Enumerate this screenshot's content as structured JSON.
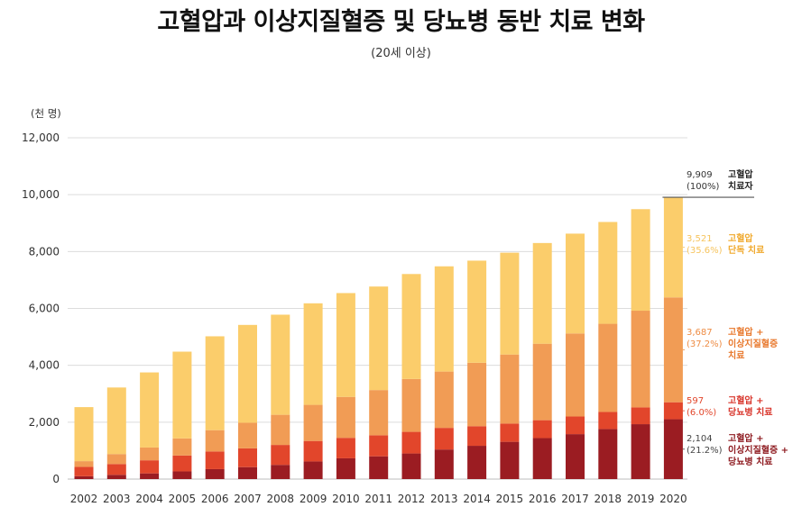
{
  "title": "고혈압과 이상지질혈증 및 당뇨병 동반 치료 변화",
  "subtitle": "(20세 이상)",
  "chart_data": {
    "type": "bar",
    "stacked": true,
    "y_unit": "(천 명)",
    "ylim": [
      0,
      12000
    ],
    "yticks": [
      "0",
      "2,000",
      "4,000",
      "6,000",
      "8,000",
      "10,000",
      "12,000"
    ],
    "grid": true,
    "categories": [
      "2002",
      "2003",
      "2004",
      "2005",
      "2006",
      "2007",
      "2008",
      "2009",
      "2010",
      "2011",
      "2012",
      "2013",
      "2014",
      "2015",
      "2016",
      "2017",
      "2018",
      "2019",
      "2020"
    ],
    "series": [
      {
        "name": "고혈압 + 이상지질혈증 + 당뇨병 치료",
        "color": "#9b1c22",
        "values": [
          100,
          150,
          200,
          270,
          350,
          420,
          500,
          620,
          730,
          800,
          900,
          1040,
          1170,
          1310,
          1440,
          1580,
          1760,
          1930,
          2104
        ]
      },
      {
        "name": "고혈압 + 당뇨병 치료",
        "color": "#e2462b",
        "values": [
          330,
          380,
          460,
          560,
          620,
          660,
          700,
          720,
          720,
          740,
          760,
          760,
          690,
          640,
          630,
          620,
          600,
          590,
          597
        ]
      },
      {
        "name": "고혈압 + 이상지질혈증 치료",
        "color": "#f19c55",
        "values": [
          200,
          350,
          450,
          600,
          750,
          900,
          1060,
          1270,
          1440,
          1590,
          1860,
          1980,
          2230,
          2430,
          2690,
          2920,
          3100,
          3400,
          3687
        ]
      },
      {
        "name": "고혈압 단독 치료",
        "color": "#fbcd6b",
        "values": [
          1900,
          2340,
          2640,
          3050,
          3300,
          3440,
          3520,
          3570,
          3650,
          3640,
          3690,
          3700,
          3590,
          3580,
          3540,
          3510,
          3580,
          3570,
          3521
        ]
      }
    ],
    "annotations": [
      {
        "value": "9,909",
        "pct": "(100%)",
        "label": [
          "고혈압",
          "치료자"
        ],
        "color": "#333333",
        "label_color": "#222222"
      },
      {
        "value": "3,521",
        "pct": "(35.6%)",
        "label": [
          "고혈압",
          "단독 치료"
        ],
        "color": "#f6c45e",
        "label_color": "#f0a92c"
      },
      {
        "value": "3,687",
        "pct": "(37.2%)",
        "label": [
          "고혈압 +",
          "이상지질혈증",
          "치료"
        ],
        "color": "#ee8c44",
        "label_color": "#e8782c"
      },
      {
        "value": "597",
        "pct": "(6.0%)",
        "label": [
          "고혈압 +",
          "당뇨병 치료"
        ],
        "color": "#e2462b",
        "label_color": "#d8342a"
      },
      {
        "value": "2,104",
        "pct": "(21.2%)",
        "label": [
          "고혈압 +",
          "이상지질혈증 +",
          "당뇨병 치료"
        ],
        "color": "#444444",
        "label_color": "#8e1b20"
      }
    ]
  }
}
